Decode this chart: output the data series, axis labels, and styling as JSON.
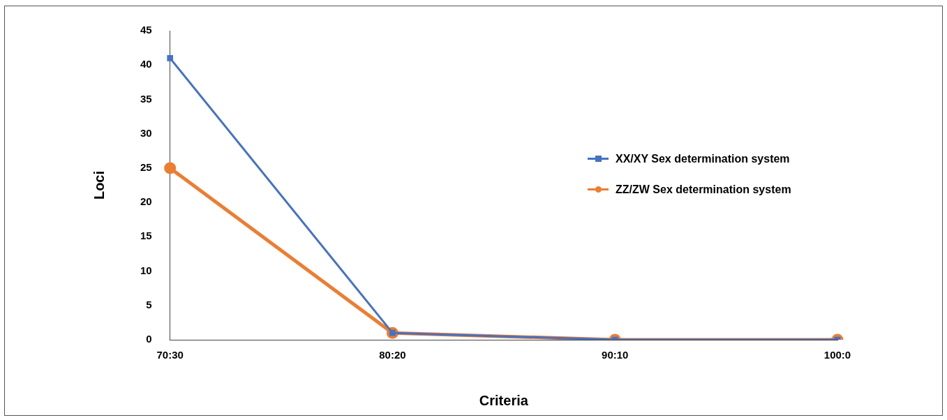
{
  "chart_data": {
    "type": "line",
    "xlabel": "Criteria",
    "ylabel": "Loci",
    "categories": [
      "70:30",
      "80:20",
      "90:10",
      "100:0"
    ],
    "series": [
      {
        "name": "XX/XY Sex determination system",
        "color": "#4472c4",
        "marker": "square",
        "values": [
          41,
          1,
          0,
          0
        ]
      },
      {
        "name": "ZZ/ZW Sex determination system",
        "color": "#ed7d31",
        "marker": "circle",
        "values": [
          25,
          1,
          0,
          0
        ]
      }
    ],
    "ylim": [
      0,
      45
    ],
    "yticks": [
      0,
      5,
      10,
      15,
      20,
      25,
      30,
      35,
      40,
      45
    ],
    "grid": false,
    "legend": "right",
    "line_style": "solid"
  }
}
